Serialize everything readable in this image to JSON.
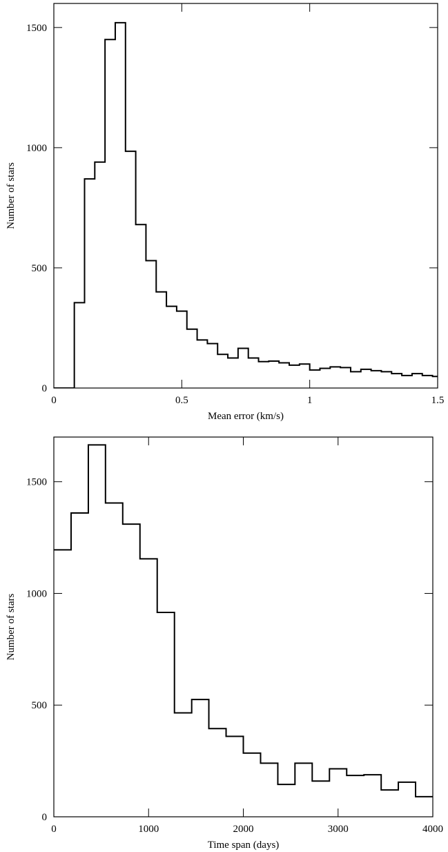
{
  "chart_data": [
    {
      "type": "histogram",
      "xlabel": "Mean error (km/s)",
      "ylabel": "Number of stars",
      "bins": [
        0,
        0.04,
        0.08,
        0.12,
        0.16,
        0.2,
        0.24,
        0.28,
        0.32,
        0.36,
        0.4,
        0.44,
        0.48,
        0.52,
        0.56,
        0.6,
        0.64,
        0.68,
        0.72,
        0.76,
        0.8,
        0.84,
        0.88,
        0.92,
        0.96,
        1,
        1.04,
        1.08,
        1.12,
        1.16,
        1.2,
        1.24,
        1.28,
        1.32,
        1.36,
        1.4,
        1.44,
        1.48,
        1.52
      ],
      "values": [
        0,
        0,
        355,
        870,
        940,
        1450,
        1520,
        985,
        680,
        530,
        400,
        340,
        320,
        245,
        200,
        185,
        140,
        125,
        165,
        125,
        110,
        112,
        105,
        95,
        100,
        75,
        82,
        88,
        85,
        68,
        78,
        72,
        68,
        60,
        52,
        60,
        52,
        48
      ],
      "color": "#000000",
      "xlim": [
        0,
        1.5
      ],
      "xticks": [
        0,
        0.5,
        1,
        1.5
      ],
      "ylim": [
        0,
        1600
      ],
      "yticks": [
        0,
        500,
        1000,
        1500
      ]
    },
    {
      "type": "histogram",
      "xlabel": "Time span (days)",
      "ylabel": "Number of stars",
      "bins": [
        0,
        182,
        364,
        545,
        727,
        909,
        1091,
        1273,
        1455,
        1636,
        1818,
        2000,
        2182,
        2364,
        2545,
        2727,
        2909,
        3091,
        3273,
        3455,
        3636,
        3818,
        4000
      ],
      "values": [
        1195,
        1360,
        1665,
        1405,
        1310,
        1155,
        915,
        465,
        525,
        395,
        360,
        285,
        240,
        145,
        240,
        160,
        215,
        185,
        188,
        120,
        155,
        90
      ],
      "color": "#000000",
      "xlim": [
        0,
        4000
      ],
      "xticks": [
        0,
        1000,
        2000,
        3000,
        4000
      ],
      "ylim": [
        0,
        1700
      ],
      "yticks": [
        0,
        500,
        1000,
        1500
      ]
    }
  ]
}
